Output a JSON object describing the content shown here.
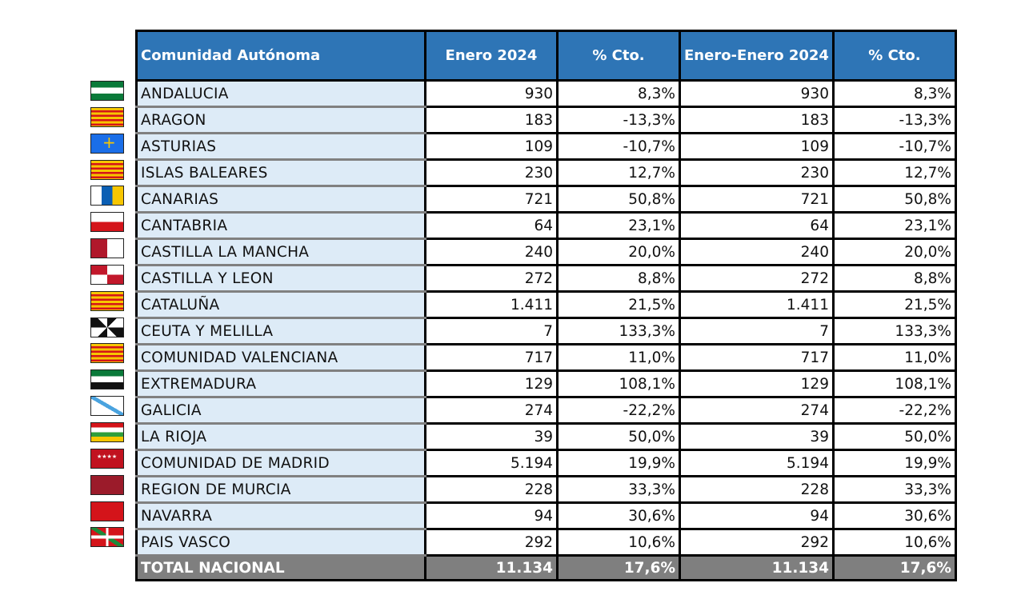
{
  "table": {
    "headers": [
      "Comunidad Autónoma",
      "Enero 2024",
      "% Cto.",
      "Enero-Enero 2024",
      "% Cto."
    ],
    "rows": [
      {
        "name": "ANDALUCIA",
        "flag": "and",
        "ene": "930",
        "cto": "8,3%",
        "acc": "930",
        "cto2": "8,3%"
      },
      {
        "name": "ARAGON",
        "flag": "ara",
        "ene": "183",
        "cto": "-13,3%",
        "acc": "183",
        "cto2": "-13,3%"
      },
      {
        "name": "ASTURIAS",
        "flag": "ast",
        "ene": "109",
        "cto": "-10,7%",
        "acc": "109",
        "cto2": "-10,7%"
      },
      {
        "name": "ISLAS BALEARES",
        "flag": "bal",
        "ene": "230",
        "cto": "12,7%",
        "acc": "230",
        "cto2": "12,7%"
      },
      {
        "name": "CANARIAS",
        "flag": "can",
        "ene": "721",
        "cto": "50,8%",
        "acc": "721",
        "cto2": "50,8%"
      },
      {
        "name": "CANTABRIA",
        "flag": "cnt",
        "ene": "64",
        "cto": "23,1%",
        "acc": "64",
        "cto2": "23,1%"
      },
      {
        "name": "CASTILLA  LA MANCHA",
        "flag": "clm",
        "ene": "240",
        "cto": "20,0%",
        "acc": "240",
        "cto2": "20,0%"
      },
      {
        "name": "CASTILLA Y LEON",
        "flag": "cyl",
        "ene": "272",
        "cto": "8,8%",
        "acc": "272",
        "cto2": "8,8%"
      },
      {
        "name": "CATALUÑA",
        "flag": "cat",
        "ene": "1.411",
        "cto": "21,5%",
        "acc": "1.411",
        "cto2": "21,5%"
      },
      {
        "name": "CEUTA Y MELILLA",
        "flag": "ceu",
        "ene": "7",
        "cto": "133,3%",
        "acc": "7",
        "cto2": "133,3%"
      },
      {
        "name": "COMUNIDAD VALENCIANA",
        "flag": "val",
        "ene": "717",
        "cto": "11,0%",
        "acc": "717",
        "cto2": "11,0%"
      },
      {
        "name": "EXTREMADURA",
        "flag": "ext",
        "ene": "129",
        "cto": "108,1%",
        "acc": "129",
        "cto2": "108,1%"
      },
      {
        "name": "GALICIA",
        "flag": "gal",
        "ene": "274",
        "cto": "-22,2%",
        "acc": "274",
        "cto2": "-22,2%"
      },
      {
        "name": "LA RIOJA",
        "flag": "rio",
        "ene": "39",
        "cto": "50,0%",
        "acc": "39",
        "cto2": "50,0%"
      },
      {
        "name": "COMUNIDAD DE MADRID",
        "flag": "mad",
        "ene": "5.194",
        "cto": "19,9%",
        "acc": "5.194",
        "cto2": "19,9%"
      },
      {
        "name": "REGION DE MURCIA",
        "flag": "mur",
        "ene": "228",
        "cto": "33,3%",
        "acc": "228",
        "cto2": "33,3%"
      },
      {
        "name": "NAVARRA",
        "flag": "nav",
        "ene": "94",
        "cto": "30,6%",
        "acc": "94",
        "cto2": "30,6%"
      },
      {
        "name": "PAIS VASCO",
        "flag": "pvs",
        "ene": "292",
        "cto": "10,6%",
        "acc": "292",
        "cto2": "10,6%"
      }
    ],
    "total": {
      "name": "TOTAL NACIONAL",
      "ene": "11.134",
      "cto": "17,6%",
      "acc": "11.134",
      "cto2": "17,6%"
    }
  },
  "colors": {
    "header_bg": "#2e75b6",
    "name_col_bg": "#ddebf7",
    "total_bg": "#7f7f7f"
  }
}
